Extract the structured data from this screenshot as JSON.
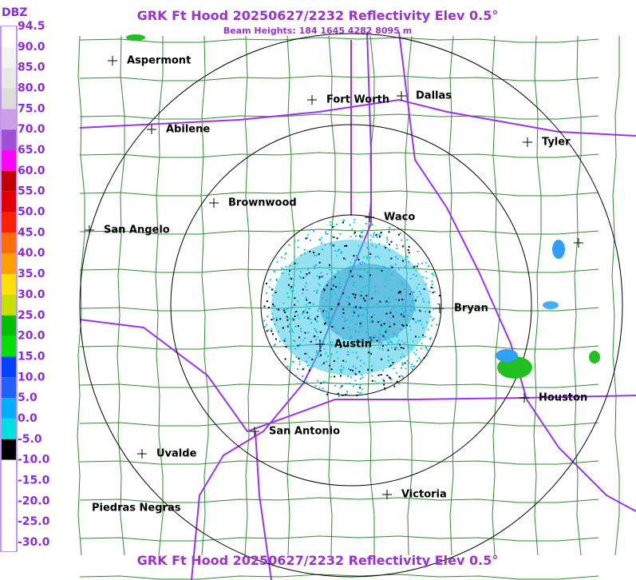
{
  "header": {
    "title": "GRK Ft Hood 20250627/2232 Reflectivity Elev 0.5°",
    "beam_heights": "Beam Heights: 184 1645 4282 8095 m"
  },
  "legend": {
    "title": "DBZ",
    "labels": [
      "94.5",
      "90.0",
      "85.0",
      "80.0",
      "75.0",
      "70.0",
      "65.0",
      "60.0",
      "55.0",
      "50.0",
      "45.0",
      "40.0",
      "35.0",
      "30.0",
      "25.0",
      "20.0",
      "15.0",
      "10.0",
      "5.0",
      "0.0",
      "-5.0",
      "-10.0",
      "-15.0",
      "-20.0",
      "-25.0",
      "-30.0"
    ],
    "colors": [
      "#ffffff",
      "#f4f4f4",
      "#e8e8e8",
      "#dcdcdc",
      "#c8a0e6",
      "#a050d8",
      "#ff00ff",
      "#c00000",
      "#e00000",
      "#ff2000",
      "#ff7000",
      "#ffa000",
      "#ffe000",
      "#c8e000",
      "#00c000",
      "#00e000",
      "#0040ff",
      "#2060ff",
      "#00b0ff",
      "#00e0e0",
      "#000000",
      "#ffffff",
      "#ffffff",
      "#ffffff",
      "#ffffff",
      "#ffffff"
    ]
  },
  "cities": [
    {
      "name": "Aspermont"
    },
    {
      "name": "Fort Worth"
    },
    {
      "name": "Dallas"
    },
    {
      "name": "Abilene"
    },
    {
      "name": "Tyler"
    },
    {
      "name": "Brownwood"
    },
    {
      "name": "Waco"
    },
    {
      "name": "San Angelo"
    },
    {
      "name": "Bryan"
    },
    {
      "name": "Austin"
    },
    {
      "name": "Houston"
    },
    {
      "name": "San Antonio"
    },
    {
      "name": "Uvalde"
    },
    {
      "name": "Victoria"
    },
    {
      "name": "Piedras Negras"
    }
  ],
  "footer": {
    "title": "GRK Ft Hood 20250627/2232 Reflectivity Elev 0.5°"
  }
}
